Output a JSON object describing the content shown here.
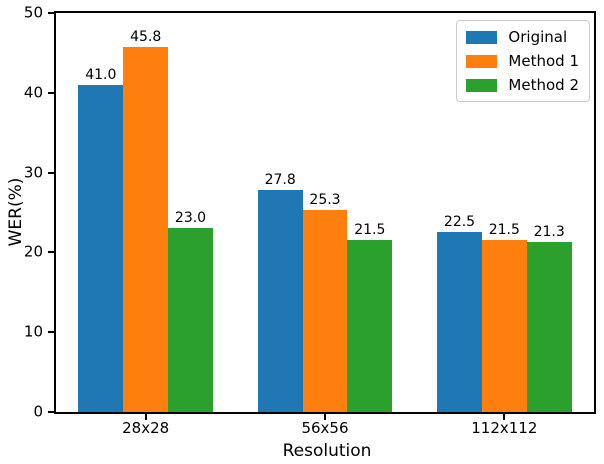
{
  "chart_data": {
    "type": "bar",
    "title": "",
    "xlabel": "Resolution",
    "ylabel": "WER(%)",
    "categories": [
      "28x28",
      "56x56",
      "112x112"
    ],
    "series": [
      {
        "name": "Original",
        "color": "#1f77b4",
        "values": [
          41.0,
          27.8,
          22.5
        ]
      },
      {
        "name": "Method 1",
        "color": "#ff7f0e",
        "values": [
          45.8,
          25.3,
          21.5
        ]
      },
      {
        "name": "Method 2",
        "color": "#2ca02c",
        "values": [
          23.0,
          21.5,
          21.3
        ]
      }
    ],
    "bar_value_labels": [
      [
        "41.0",
        "27.8",
        "22.5"
      ],
      [
        "45.8",
        "25.3",
        "21.5"
      ],
      [
        "23.0",
        "21.5",
        "21.3"
      ]
    ],
    "ylim": [
      0,
      50
    ],
    "yticks": [
      "0",
      "10",
      "20",
      "30",
      "40",
      "50"
    ],
    "grid": false,
    "legend_position": "upper right"
  },
  "style": {
    "background": "#ffffff",
    "axis_color": "#000000",
    "text_color": "#000000",
    "legend_border_color": "#cccccc"
  }
}
